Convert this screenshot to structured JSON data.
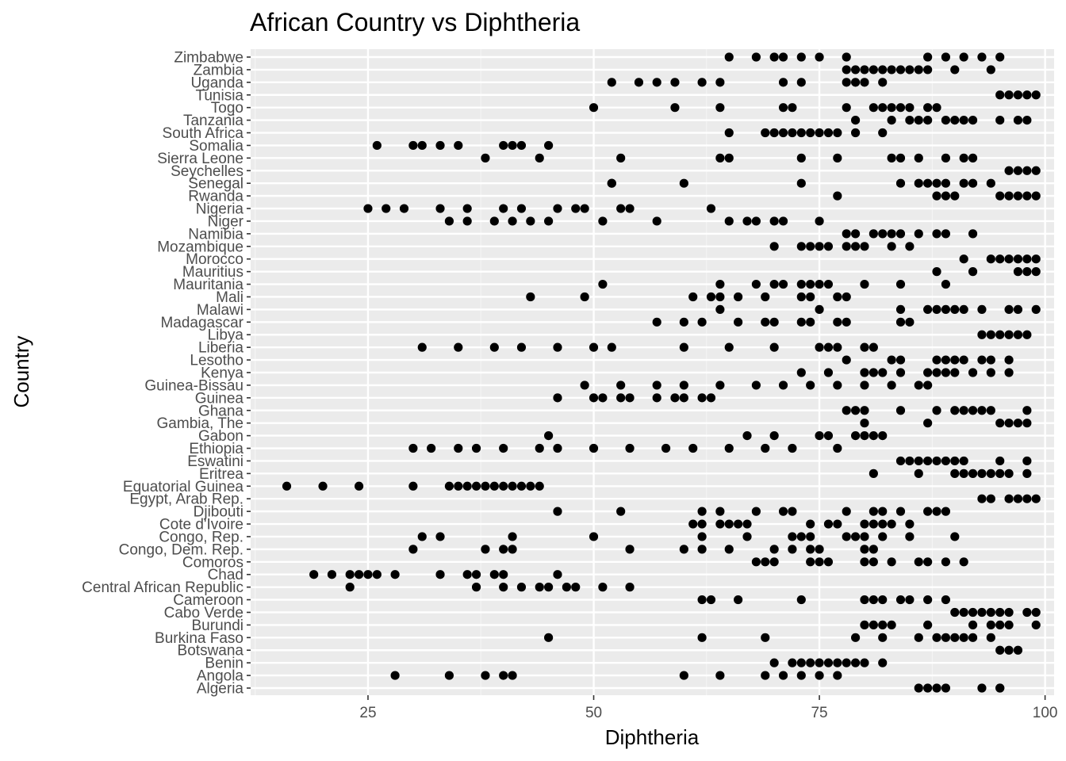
{
  "chart_data": {
    "type": "scatter",
    "title": "African Country vs Diphtheria",
    "xlabel": "Diphtheria",
    "ylabel": "Country",
    "xlim": [
      12,
      101
    ],
    "xticks": [
      25,
      50,
      75,
      100
    ],
    "grid": true,
    "legend": "none",
    "colors": {
      "panel": "#ebebeb",
      "grid": "#ffffff",
      "point": "#000000",
      "tick": "#4d4d4d"
    },
    "categories": [
      "Algeria",
      "Angola",
      "Benin",
      "Botswana",
      "Burkina Faso",
      "Burundi",
      "Cabo Verde",
      "Cameroon",
      "Central African Republic",
      "Chad",
      "Comoros",
      "Congo, Dem. Rep.",
      "Congo, Rep.",
      "Cote d'Ivoire",
      "Djibouti",
      "Egypt, Arab Rep.",
      "Equatorial Guinea",
      "Eritrea",
      "Eswatini",
      "Ethiopia",
      "Gabon",
      "Gambia, The",
      "Ghana",
      "Guinea",
      "Guinea-Bissau",
      "Kenya",
      "Lesotho",
      "Liberia",
      "Libya",
      "Madagascar",
      "Malawi",
      "Mali",
      "Mauritania",
      "Mauritius",
      "Morocco",
      "Mozambique",
      "Namibia",
      "Niger",
      "Nigeria",
      "Rwanda",
      "Senegal",
      "Seychelles",
      "Sierra Leone",
      "Somalia",
      "South Africa",
      "Tanzania",
      "Togo",
      "Tunisia",
      "Uganda",
      "Zambia",
      "Zimbabwe"
    ],
    "points": {
      "Algeria": [
        86,
        87,
        88,
        89,
        93,
        95,
        95
      ],
      "Angola": [
        28,
        34,
        38,
        40,
        41,
        60,
        64,
        69,
        71,
        73,
        75,
        77
      ],
      "Benin": [
        70,
        72,
        73,
        74,
        75,
        76,
        77,
        78,
        79,
        80,
        82
      ],
      "Botswana": [
        95,
        96,
        97
      ],
      "Burkina Faso": [
        45,
        62,
        69,
        79,
        82,
        86,
        88,
        89,
        90,
        91,
        92,
        94
      ],
      "Burundi": [
        80,
        81,
        82,
        83,
        87,
        92,
        94,
        95,
        96,
        99
      ],
      "Cabo Verde": [
        90,
        91,
        92,
        93,
        94,
        95,
        96,
        98,
        99
      ],
      "Cameroon": [
        62,
        63,
        66,
        73,
        80,
        81,
        82,
        84,
        85,
        87,
        89
      ],
      "Central African Republic": [
        23,
        37,
        40,
        42,
        44,
        45,
        47,
        48,
        51,
        54
      ],
      "Chad": [
        19,
        21,
        23,
        24,
        25,
        26,
        28,
        33,
        36,
        37,
        39,
        40,
        46
      ],
      "Comoros": [
        68,
        69,
        70,
        74,
        75,
        76,
        80,
        81,
        83,
        86,
        87,
        89,
        91
      ],
      "Congo, Dem. Rep.": [
        30,
        38,
        40,
        41,
        54,
        60,
        62,
        65,
        70,
        72,
        74,
        75,
        80,
        81
      ],
      "Congo, Rep.": [
        31,
        33,
        41,
        50,
        62,
        67,
        72,
        73,
        74,
        78,
        79,
        80,
        82,
        85,
        90
      ],
      "Cote d'Ivoire": [
        61,
        62,
        64,
        65,
        66,
        67,
        74,
        76,
        77,
        80,
        81,
        82,
        83,
        85
      ],
      "Djibouti": [
        46,
        53,
        62,
        64,
        68,
        71,
        72,
        78,
        81,
        82,
        84,
        87,
        88,
        89
      ],
      "Egypt, Arab Rep.": [
        93,
        94,
        96,
        97,
        98,
        99
      ],
      "Equatorial Guinea": [
        16,
        20,
        24,
        30,
        34,
        35,
        36,
        37,
        38,
        39,
        40,
        41,
        42,
        43,
        44
      ],
      "Eritrea": [
        81,
        86,
        90,
        91,
        92,
        93,
        94,
        95,
        96,
        98
      ],
      "Eswatini": [
        84,
        85,
        86,
        87,
        88,
        89,
        90,
        91,
        95,
        98
      ],
      "Ethiopia": [
        30,
        32,
        35,
        37,
        40,
        44,
        46,
        50,
        54,
        58,
        61,
        65,
        69,
        72,
        77
      ],
      "Gabon": [
        45,
        67,
        70,
        75,
        76,
        79,
        80,
        81,
        82
      ],
      "Gambia, The": [
        80,
        87,
        95,
        96,
        97,
        98
      ],
      "Ghana": [
        78,
        79,
        80,
        84,
        88,
        90,
        91,
        92,
        93,
        94,
        98
      ],
      "Guinea": [
        46,
        50,
        51,
        53,
        54,
        57,
        59,
        60,
        62,
        63
      ],
      "Guinea-Bissau": [
        49,
        53,
        57,
        60,
        64,
        68,
        71,
        74,
        77,
        80,
        83,
        86,
        87
      ],
      "Kenya": [
        73,
        76,
        80,
        81,
        82,
        84,
        87,
        88,
        89,
        90,
        92,
        94,
        96
      ],
      "Lesotho": [
        78,
        83,
        84,
        88,
        89,
        90,
        91,
        93,
        94,
        96
      ],
      "Liberia": [
        31,
        35,
        39,
        42,
        46,
        50,
        52,
        60,
        65,
        70,
        75,
        76,
        77,
        80,
        81
      ],
      "Libya": [
        93,
        94,
        95,
        96,
        97,
        98
      ],
      "Madagascar": [
        57,
        60,
        62,
        66,
        69,
        70,
        73,
        74,
        77,
        78,
        84,
        85
      ],
      "Malawi": [
        64,
        75,
        84,
        87,
        88,
        89,
        90,
        91,
        93,
        96,
        97,
        99
      ],
      "Mali": [
        43,
        49,
        61,
        63,
        64,
        66,
        69,
        73,
        74,
        77,
        78
      ],
      "Mauritania": [
        51,
        64,
        68,
        70,
        71,
        73,
        74,
        75,
        76,
        80,
        84,
        89
      ],
      "Mauritius": [
        88,
        92,
        97,
        98,
        99
      ],
      "Morocco": [
        91,
        94,
        95,
        96,
        97,
        98,
        99
      ],
      "Mozambique": [
        70,
        73,
        74,
        75,
        76,
        78,
        79,
        80,
        83,
        85
      ],
      "Namibia": [
        78,
        79,
        81,
        82,
        83,
        84,
        86,
        88,
        89,
        92
      ],
      "Niger": [
        34,
        36,
        39,
        41,
        43,
        45,
        51,
        57,
        65,
        67,
        68,
        70,
        71,
        75
      ],
      "Nigeria": [
        25,
        27,
        29,
        33,
        36,
        40,
        42,
        46,
        48,
        49,
        53,
        54,
        63
      ],
      "Rwanda": [
        77,
        88,
        89,
        90,
        95,
        96,
        97,
        98,
        99
      ],
      "Senegal": [
        52,
        52,
        60,
        73,
        84,
        86,
        87,
        88,
        89,
        91,
        92,
        94
      ],
      "Seychelles": [
        96,
        97,
        98,
        99
      ],
      "Sierra Leone": [
        38,
        44,
        53,
        64,
        65,
        73,
        77,
        83,
        84,
        86,
        89,
        91,
        92
      ],
      "Somalia": [
        26,
        30,
        31,
        33,
        35,
        40,
        41,
        42,
        45
      ],
      "South Africa": [
        65,
        69,
        70,
        71,
        72,
        73,
        74,
        75,
        76,
        77,
        79,
        82
      ],
      "Tanzania": [
        79,
        83,
        85,
        86,
        87,
        89,
        90,
        91,
        92,
        95,
        97,
        98
      ],
      "Togo": [
        50,
        59,
        64,
        71,
        72,
        78,
        81,
        82,
        83,
        84,
        85,
        87,
        88
      ],
      "Tunisia": [
        95,
        96,
        97,
        98,
        99
      ],
      "Uganda": [
        52,
        55,
        57,
        59,
        62,
        64,
        71,
        73,
        78,
        79,
        80,
        82
      ],
      "Zambia": [
        78,
        79,
        80,
        81,
        82,
        83,
        84,
        85,
        86,
        87,
        90,
        94
      ],
      "Zimbabwe": [
        65,
        68,
        70,
        71,
        73,
        75,
        78,
        87,
        89,
        91,
        93,
        95
      ]
    }
  }
}
